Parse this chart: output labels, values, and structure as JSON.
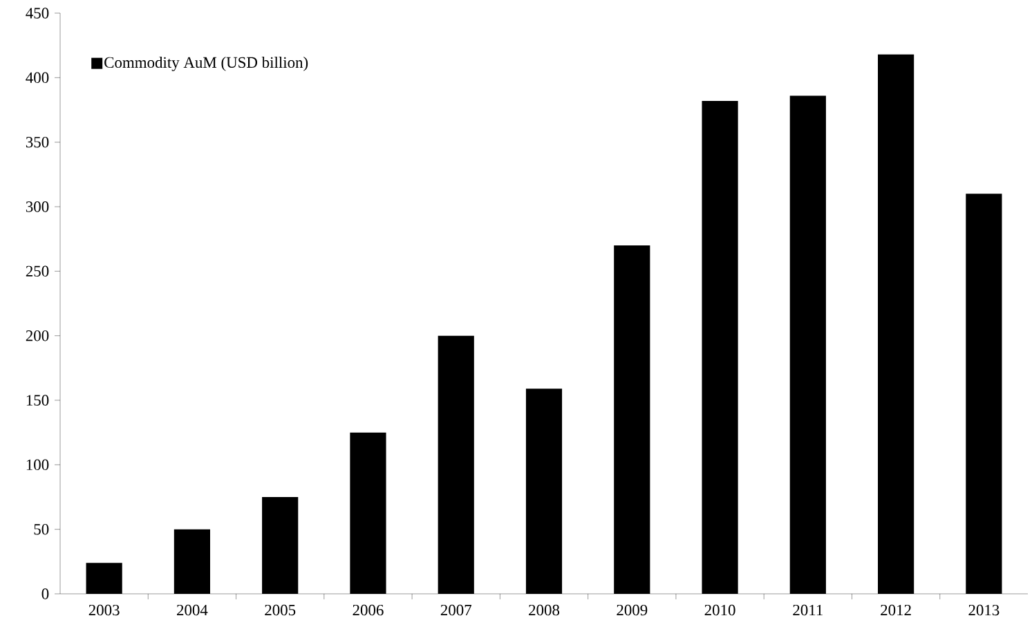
{
  "chart_data": {
    "type": "bar",
    "categories": [
      "2003",
      "2004",
      "2005",
      "2006",
      "2007",
      "2008",
      "2009",
      "2010",
      "2011",
      "2012",
      "2013"
    ],
    "series": [
      {
        "name": "Commodity AuM (USD billion)",
        "color": "#000000",
        "values": [
          24,
          50,
          75,
          125,
          200,
          159,
          270,
          382,
          386,
          418,
          310
        ]
      }
    ],
    "ylim": [
      0,
      450
    ],
    "yticks": [
      0,
      50,
      100,
      150,
      200,
      250,
      300,
      350,
      400,
      450
    ],
    "legend": "top left",
    "grid": false
  }
}
